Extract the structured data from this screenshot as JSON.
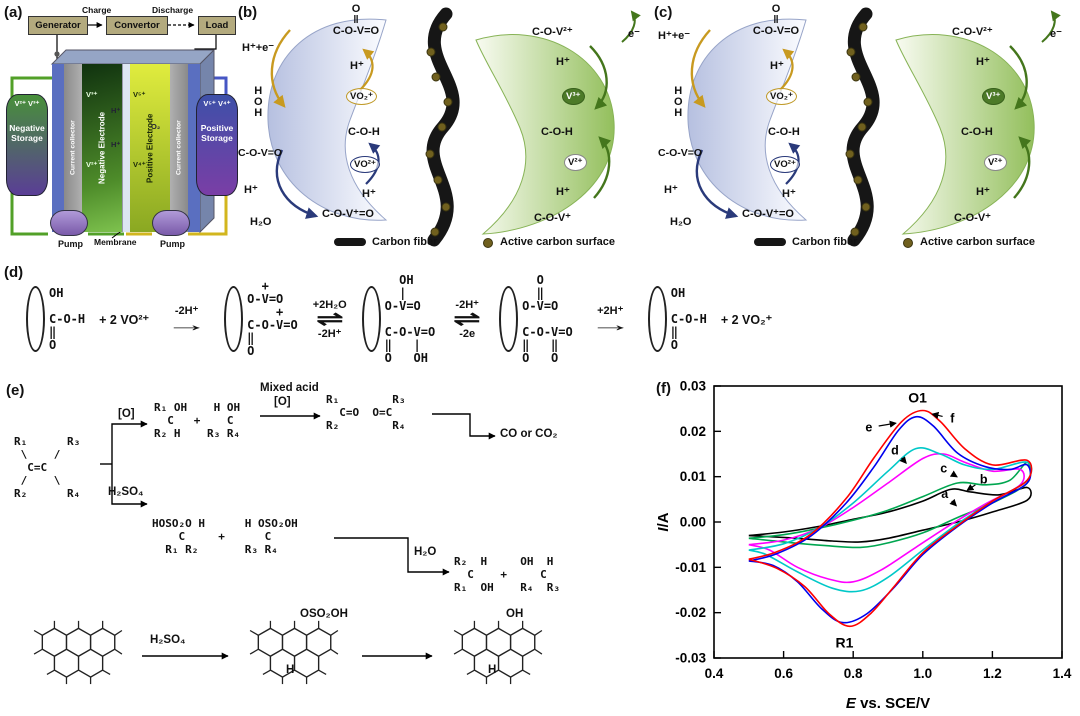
{
  "panel_labels": {
    "a": "(a)",
    "b": "(b)",
    "c": "(c)",
    "d": "(d)",
    "e": "(e)",
    "f": "(f)"
  },
  "icons": {
    "arrow_right": "→",
    "equilibrium": "⇌"
  },
  "panel_a": {
    "generator": "Generator",
    "charge": "Charge",
    "convertor": "Convertor",
    "discharge": "Discharge",
    "load": "Load",
    "neg_ions": "V²⁺ V³⁺",
    "pos_ions": "V⁵⁺ V⁴⁺",
    "neg_storage": "Negative Storage",
    "pos_storage": "Positive Storage",
    "current_collector_left": "Current collector",
    "current_collector_right": "Current collector",
    "neg_electrode": "Negative Electrode",
    "pos_electrode": "Positive Electrode",
    "membrane": "Membrane",
    "pump_left": "Pump",
    "pump_right": "Pump",
    "ion_v3": "V³⁺",
    "ion_v2": "V²⁺",
    "ion_h_left": "H⁺",
    "ion_h_right": "H⁺",
    "ion_v5": "V⁵⁺",
    "ion_v4": "V⁴⁺",
    "ion_o2": "O₂"
  },
  "panel_b": {
    "h_e": "H⁺+e⁻",
    "top_block": [
      "O",
      "‖",
      "C-O-V=O"
    ],
    "top_h": "H⁺",
    "left_col": [
      "H",
      "O",
      "H"
    ],
    "left_formula": "C-O-V=O",
    "left_h": "H⁺",
    "h2o": "H₂O",
    "vo2_plus": "VO₂⁺",
    "coh_left": "C-O-H",
    "vo2": "VO²⁺",
    "mid_h": "H⁺",
    "cov_formula": "C-O-V⁺=O",
    "right_top": "C-O-V²⁺",
    "right_h_top": "H⁺",
    "v3": "V³⁺",
    "coh_right": "C-O-H",
    "v2": "V²⁺",
    "right_h_bottom": "H⁺",
    "right_bottom": "C-O-V⁺",
    "electron": "e⁻",
    "legend_fiber": "Carbon fiber",
    "legend_surface": "Active carbon surface"
  },
  "panel_c": {
    "h_e": "H⁺+e⁻",
    "top_block": [
      "O",
      "‖",
      "C-O-V=O"
    ],
    "top_h": "H⁺",
    "left_col": [
      "H",
      "O",
      "H"
    ],
    "left_formula": "C-O-V=O",
    "left_h": "H⁺",
    "h2o": "H₂O",
    "vo2_plus": "VO₂⁺",
    "coh_left": "C-O-H",
    "vo2": "VO²⁺",
    "mid_h": "H⁺",
    "cov_formula": "C-O-V⁺=O",
    "right_top": "C-O-V²⁺",
    "right_h_top": "H⁺",
    "v3": "V³⁺",
    "coh_right": "C-O-H",
    "v2": "V²⁺",
    "right_h_bottom": "H⁺",
    "right_bottom": "C-O-V⁺",
    "electron": "e⁻",
    "legend_fiber": "Carbon fiber",
    "legend_surface": "Active carbon surface"
  },
  "panel_d": {
    "s1": [
      "OH",
      "",
      "C-O-H",
      "‖",
      "O"
    ],
    "plus1": "+ 2 VO²⁺",
    "a1_top": "-2H⁺",
    "s2": [
      "  +",
      "O-V=O",
      "    +",
      "C-O-V=O",
      "‖",
      "O"
    ],
    "a2_top": "+2H₂O",
    "a2_bottom": "-2H⁺",
    "s3": [
      "  OH",
      "  |",
      "O-V=O",
      "",
      "C-O-V=O",
      "‖   |",
      "O   OH"
    ],
    "a3_top": "-2H⁺",
    "a3_bottom": "-2e",
    "s4": [
      "  O",
      "  ‖",
      "O-V=O",
      "",
      "C-O-V=O",
      "‖   ‖",
      "O   O"
    ],
    "a4_top": "+2H⁺",
    "s5": [
      "OH",
      "",
      "C-O-H",
      "‖",
      "O"
    ],
    "plus2": "+ 2 VO₂⁺"
  },
  "panel_e": {
    "alkene": [
      "R₁      R₃",
      " \\    /",
      "  C=C",
      " /    \\",
      "R₂      R₄"
    ],
    "o_label": "[O]",
    "h2so4_label": "H₂SO₄",
    "diols": [
      "R₁ OH    H OH",
      "  C   +    C",
      "R₂ H    R₃ R₄"
    ],
    "mixed_acid": "Mixed acid",
    "mixed_acid_o": "[O]",
    "ketones": [
      "R₁        R₃",
      "  C=O  O=C",
      "R₂        R₄"
    ],
    "co_label": "CO or CO₂",
    "sulfates": [
      "HOSO₂O H      H OSO₂OH",
      "    C     +      C",
      "  R₁ R₂       R₃ R₄"
    ],
    "h2o_label": "H₂O",
    "products": [
      "R₂  H     OH  H",
      "  C    +     C",
      "R₁  OH    R₄  R₃"
    ],
    "arom_h2so4": "H₂SO₄",
    "arom_oso2oh": "OSO₂OH",
    "arom_h1": "H",
    "arom_oh": "OH",
    "arom_h2": "H"
  },
  "chart_data": {
    "type": "line",
    "title": "",
    "xlabel": {
      "italic": "E",
      "rest": " vs. SCE/V"
    },
    "ylabel": {
      "italic": "I",
      "rest": "/A"
    },
    "xlim": [
      0.4,
      1.4
    ],
    "ylim": [
      -0.03,
      0.03
    ],
    "grid": false,
    "xticks": [
      0.4,
      0.6,
      0.8,
      1.0,
      1.2,
      1.4
    ],
    "xtick_labels": [
      "0.4",
      "0.6",
      "0.8",
      "1.0",
      "1.2",
      "1.4"
    ],
    "yticks": [
      0.03,
      0.02,
      0.01,
      0.0,
      -0.01,
      -0.02,
      -0.03
    ],
    "ytick_labels": [
      "0.03",
      "0.02",
      "0.01",
      "0.00",
      "-0.01",
      "-0.02",
      "-0.03"
    ],
    "annotations": [
      {
        "text": "O1",
        "x": 0.985,
        "y": 0.0272,
        "big": true
      },
      {
        "text": "R1",
        "x": 0.775,
        "y": -0.0268,
        "big": true
      },
      {
        "text": "e",
        "x": 0.845,
        "y": 0.0208,
        "ax": 0.922,
        "ay": 0.0218
      },
      {
        "text": "f",
        "x": 1.085,
        "y": 0.0228,
        "ax": 1.028,
        "ay": 0.0238
      },
      {
        "text": "d",
        "x": 0.92,
        "y": 0.0158,
        "ax": 0.952,
        "ay": 0.013
      },
      {
        "text": "c",
        "x": 1.06,
        "y": 0.0118,
        "ax": 1.098,
        "ay": 0.01
      },
      {
        "text": "b",
        "x": 1.175,
        "y": 0.0094,
        "ax": 1.128,
        "ay": 0.007
      },
      {
        "text": "a",
        "x": 1.063,
        "y": 0.0062,
        "ax": 1.096,
        "ay": 0.0036
      }
    ],
    "series": [
      {
        "name": "a",
        "color": "#000000",
        "points": [
          [
            0.5,
            -0.003
          ],
          [
            0.6,
            -0.0022
          ],
          [
            0.7,
            -0.001
          ],
          [
            0.8,
            0.0006
          ],
          [
            0.9,
            0.0022
          ],
          [
            1.0,
            0.0046
          ],
          [
            1.08,
            0.0072
          ],
          [
            1.14,
            0.0066
          ],
          [
            1.22,
            0.006
          ],
          [
            1.3,
            0.0076
          ],
          [
            1.3,
            0.0048
          ],
          [
            1.2,
            0.0022
          ],
          [
            1.1,
            0.0
          ],
          [
            1.0,
            -0.0018
          ],
          [
            0.9,
            -0.0036
          ],
          [
            0.82,
            -0.0044
          ],
          [
            0.74,
            -0.0042
          ],
          [
            0.64,
            -0.0036
          ],
          [
            0.55,
            -0.0032
          ],
          [
            0.5,
            -0.003
          ]
        ]
      },
      {
        "name": "b",
        "color": "#00a650",
        "points": [
          [
            0.5,
            -0.0036
          ],
          [
            0.6,
            -0.0028
          ],
          [
            0.7,
            -0.0014
          ],
          [
            0.8,
            0.0004
          ],
          [
            0.9,
            0.0026
          ],
          [
            1.0,
            0.0056
          ],
          [
            1.1,
            0.0086
          ],
          [
            1.18,
            0.0082
          ],
          [
            1.25,
            0.0092
          ],
          [
            1.3,
            0.0132
          ],
          [
            1.3,
            0.0086
          ],
          [
            1.2,
            0.0042
          ],
          [
            1.1,
            0.001
          ],
          [
            1.0,
            -0.0024
          ],
          [
            0.9,
            -0.0046
          ],
          [
            0.82,
            -0.0056
          ],
          [
            0.72,
            -0.0052
          ],
          [
            0.6,
            -0.0044
          ],
          [
            0.5,
            -0.0036
          ]
        ]
      },
      {
        "name": "c",
        "color": "#ff00ff",
        "points": [
          [
            0.5,
            -0.005
          ],
          [
            0.6,
            -0.004
          ],
          [
            0.7,
            -0.0014
          ],
          [
            0.8,
            0.0032
          ],
          [
            0.9,
            0.0086
          ],
          [
            1.0,
            0.014
          ],
          [
            1.06,
            0.015
          ],
          [
            1.12,
            0.0132
          ],
          [
            1.2,
            0.0112
          ],
          [
            1.28,
            0.0116
          ],
          [
            1.28,
            0.0082
          ],
          [
            1.18,
            0.004
          ],
          [
            1.08,
            -0.0006
          ],
          [
            0.98,
            -0.0056
          ],
          [
            0.88,
            -0.0106
          ],
          [
            0.8,
            -0.0132
          ],
          [
            0.73,
            -0.0126
          ],
          [
            0.64,
            -0.01
          ],
          [
            0.56,
            -0.0062
          ],
          [
            0.5,
            -0.005
          ]
        ]
      },
      {
        "name": "d",
        "color": "#00c8c8",
        "points": [
          [
            0.5,
            -0.0062
          ],
          [
            0.6,
            -0.0048
          ],
          [
            0.7,
            -0.0014
          ],
          [
            0.8,
            0.0042
          ],
          [
            0.9,
            0.0112
          ],
          [
            0.98,
            0.0162
          ],
          [
            1.05,
            0.015
          ],
          [
            1.12,
            0.0126
          ],
          [
            1.2,
            0.0116
          ],
          [
            1.3,
            0.0132
          ],
          [
            1.3,
            0.0092
          ],
          [
            1.2,
            0.0046
          ],
          [
            1.1,
            -0.0004
          ],
          [
            1.0,
            -0.0062
          ],
          [
            0.9,
            -0.0122
          ],
          [
            0.82,
            -0.0152
          ],
          [
            0.74,
            -0.0146
          ],
          [
            0.64,
            -0.011
          ],
          [
            0.55,
            -0.0072
          ],
          [
            0.5,
            -0.0062
          ]
        ]
      },
      {
        "name": "e",
        "color": "#0000ee",
        "points": [
          [
            0.5,
            -0.0086
          ],
          [
            0.58,
            -0.007
          ],
          [
            0.68,
            -0.003
          ],
          [
            0.78,
            0.0042
          ],
          [
            0.86,
            0.0122
          ],
          [
            0.93,
            0.0202
          ],
          [
            0.98,
            0.0232
          ],
          [
            1.03,
            0.0212
          ],
          [
            1.1,
            0.0152
          ],
          [
            1.18,
            0.0122
          ],
          [
            1.25,
            0.0116
          ],
          [
            1.3,
            0.0126
          ],
          [
            1.3,
            0.0086
          ],
          [
            1.2,
            0.0042
          ],
          [
            1.1,
            -0.001
          ],
          [
            1.0,
            -0.0072
          ],
          [
            0.92,
            -0.0142
          ],
          [
            0.84,
            -0.0202
          ],
          [
            0.77,
            -0.0222
          ],
          [
            0.71,
            -0.0192
          ],
          [
            0.64,
            -0.0132
          ],
          [
            0.57,
            -0.0096
          ],
          [
            0.5,
            -0.0086
          ]
        ]
      },
      {
        "name": "f",
        "color": "#ff0000",
        "points": [
          [
            0.5,
            -0.0082
          ],
          [
            0.58,
            -0.0066
          ],
          [
            0.68,
            -0.0026
          ],
          [
            0.78,
            0.0052
          ],
          [
            0.86,
            0.0142
          ],
          [
            0.94,
            0.0222
          ],
          [
            1.0,
            0.0246
          ],
          [
            1.05,
            0.0222
          ],
          [
            1.12,
            0.0162
          ],
          [
            1.2,
            0.0126
          ],
          [
            1.3,
            0.0136
          ],
          [
            1.3,
            0.0092
          ],
          [
            1.2,
            0.0046
          ],
          [
            1.1,
            -0.0008
          ],
          [
            1.0,
            -0.0068
          ],
          [
            0.92,
            -0.014
          ],
          [
            0.85,
            -0.0202
          ],
          [
            0.79,
            -0.023
          ],
          [
            0.73,
            -0.0202
          ],
          [
            0.66,
            -0.0142
          ],
          [
            0.58,
            -0.0102
          ],
          [
            0.5,
            -0.0082
          ]
        ]
      }
    ]
  },
  "colors": {
    "blob_blue": "#b6c0e0",
    "blob_green": "#93bf5c",
    "fiber": "#161616",
    "surface_dot": "#70601e",
    "arrow_yellow": "#c89a20",
    "arrow_blue": "#2a3a7a",
    "arrow_green": "#44761c"
  }
}
